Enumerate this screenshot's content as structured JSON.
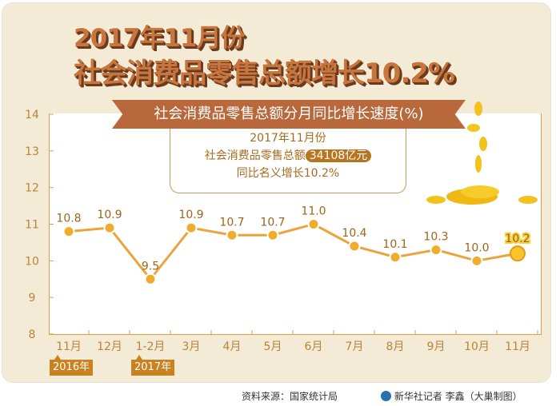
{
  "title_line1": "2017年11月份",
  "title_line2": "社会消费品零售总额增长10.2%",
  "info": {
    "line1": "2017年11月份",
    "line2_label": "社会消费品零售总额",
    "amount": "34108亿元",
    "line3": "同比名义增长10.2%"
  },
  "year_tags": [
    "2016年",
    "2017年"
  ],
  "footer": {
    "source": "资料来源：国家统计局",
    "credit": "新华社记者 李鑫（大巢制图）"
  },
  "colors": {
    "line": "#e9a53c",
    "marker": "#f0ac2c",
    "highlight": "#f7c52a",
    "label": "#a0631c"
  },
  "chart_data": {
    "type": "line",
    "title": "社会消费品零售总额分月同比增长速度(%)",
    "categories": [
      "11月",
      "12月",
      "1-2月",
      "3月",
      "4月",
      "5月",
      "6月",
      "7月",
      "8月",
      "9月",
      "10月",
      "11月"
    ],
    "values": [
      10.8,
      10.9,
      9.5,
      10.9,
      10.7,
      10.7,
      11.0,
      10.4,
      10.1,
      10.3,
      10.0,
      10.2
    ],
    "data_labels": [
      "10.8",
      "10.9",
      "9.5",
      "10.9",
      "10.7",
      "10.7",
      "11.0",
      "10.4",
      "10.1",
      "10.3",
      "10.0",
      "10.2"
    ],
    "ylim": [
      8,
      14
    ],
    "yticks": [
      8,
      9,
      10,
      11,
      12,
      13,
      14
    ],
    "grid": false
  }
}
